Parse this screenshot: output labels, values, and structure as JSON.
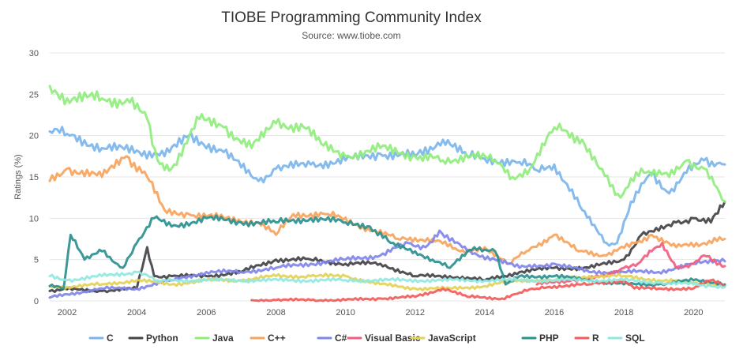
{
  "chart_data": {
    "type": "line",
    "title": "TIOBE Programming Community Index",
    "subtitle": "Source: www.tiobe.com",
    "ylabel": "Ratings (%)",
    "xlabel": "",
    "xlim": [
      2001.5,
      2020.9
    ],
    "ylim": [
      0,
      30
    ],
    "x_ticks": [
      "2002",
      "2004",
      "2006",
      "2008",
      "2010",
      "2012",
      "2014",
      "2016",
      "2018",
      "2020"
    ],
    "y_ticks": [
      "0",
      "5",
      "10",
      "15",
      "20",
      "25",
      "30"
    ],
    "grid": true,
    "legend_position": "bottom",
    "series": [
      {
        "name": "C",
        "color": "#7cb5ec",
        "x": [
          2001.5,
          2002,
          2003,
          2004,
          2004.8,
          2005.5,
          2006.5,
          2007.5,
          2008,
          2009,
          2010,
          2011,
          2012,
          2012.8,
          2013.5,
          2014,
          2015,
          2015.5,
          2016,
          2016.8,
          2017.5,
          2017.8,
          2018.2,
          2018.8,
          2019.3,
          2019.8,
          2020.3,
          2020.9
        ],
        "values": [
          20.5,
          20.2,
          18.5,
          18.2,
          17.5,
          20,
          18,
          14.5,
          16,
          16.5,
          17,
          17.8,
          17.5,
          19.5,
          17.5,
          17.2,
          16.8,
          15.8,
          16.5,
          11,
          7,
          7,
          12,
          15.5,
          13,
          15.5,
          17,
          16.5
        ]
      },
      {
        "name": "Python",
        "color": "#434348",
        "x": [
          2001.5,
          2002,
          2003,
          2004,
          2004.3,
          2004.5,
          2005,
          2006,
          2007,
          2008,
          2009,
          2010,
          2011,
          2012,
          2013,
          2014,
          2015,
          2016,
          2017,
          2018,
          2018.5,
          2019,
          2019.5,
          2020,
          2020.5,
          2020.9
        ],
        "values": [
          1.2,
          1.4,
          1.2,
          1.5,
          6.5,
          3,
          3,
          3,
          3.5,
          5,
          5,
          4.5,
          4.5,
          3,
          3,
          2.5,
          3.5,
          4,
          4,
          5,
          8,
          8.5,
          9.5,
          10,
          9.5,
          12
        ]
      },
      {
        "name": "Java",
        "color": "#90ed7d",
        "x": [
          2001.5,
          2002,
          2003,
          2003.8,
          2004.3,
          2004.6,
          2005,
          2005.8,
          2006.5,
          2007.3,
          2008,
          2008.8,
          2009.3,
          2010,
          2011,
          2012,
          2012.8,
          2013.6,
          2014.3,
          2014.8,
          2015.3,
          2016,
          2016.8,
          2017.3,
          2017.9,
          2018.5,
          2019.3,
          2019.8,
          2020.3,
          2020.9
        ],
        "values": [
          26,
          24.5,
          24.5,
          24,
          22,
          17,
          16,
          22,
          21,
          18.5,
          21.5,
          21,
          19,
          17.5,
          18.5,
          17.5,
          17,
          17.5,
          17,
          15,
          16,
          21,
          19.5,
          16,
          12.5,
          16,
          15,
          17,
          16,
          12
        ]
      },
      {
        "name": "C++",
        "color": "#f7a35c",
        "x": [
          2001.5,
          2002,
          2003,
          2003.7,
          2004.3,
          2004.8,
          2005.5,
          2006.5,
          2007.5,
          2008,
          2008.5,
          2009.5,
          2010.5,
          2011.5,
          2012.5,
          2013.3,
          2014,
          2014.7,
          2015.2,
          2016,
          2016.7,
          2017.5,
          2018.3,
          2018.8,
          2019.5,
          2020.3,
          2020.9
        ],
        "values": [
          14.5,
          16,
          15,
          17.5,
          15,
          11,
          10.5,
          10,
          9.5,
          8,
          10.5,
          10.5,
          9,
          7.5,
          7.5,
          6,
          6.5,
          4.5,
          6,
          8,
          6,
          5.5,
          7,
          8,
          6.5,
          7,
          7.5
        ]
      },
      {
        "name": "C#",
        "color": "#8085e9",
        "x": [
          2001.5,
          2002,
          2003,
          2004,
          2005,
          2006,
          2007,
          2008,
          2009,
          2010,
          2011,
          2011.8,
          2012.3,
          2012.7,
          2013.5,
          2014.3,
          2015,
          2016,
          2017,
          2018,
          2019,
          2020,
          2020.9
        ],
        "values": [
          0.4,
          0.8,
          1.5,
          1.5,
          2.5,
          3.5,
          3.5,
          4,
          4.5,
          5,
          5.5,
          7,
          6.5,
          8.5,
          6,
          5,
          4,
          4.5,
          3.5,
          3.5,
          3.5,
          4.5,
          4.8
        ]
      },
      {
        "name": "Visual Basic",
        "color": "#f15c80",
        "x": [
          2015.5,
          2016.5,
          2017.5,
          2018,
          2018.4,
          2018.8,
          2019.1,
          2019.5,
          2020,
          2020.3,
          2020.9
        ],
        "values": [
          2,
          2.5,
          3,
          4,
          4.5,
          6,
          7,
          4,
          4.5,
          5.5,
          4.2
        ]
      },
      {
        "name": "JavaScript",
        "color": "#e4d354",
        "x": [
          2001.5,
          2002,
          2003,
          2004,
          2005,
          2006,
          2007,
          2008,
          2009,
          2010,
          2011,
          2012,
          2013,
          2014,
          2015,
          2016,
          2017,
          2018,
          2019,
          2020,
          2020.9
        ],
        "values": [
          1.8,
          1.7,
          2,
          2.5,
          2,
          2.5,
          2.5,
          3,
          3,
          3,
          2,
          1.5,
          1.5,
          1.8,
          2.5,
          2.5,
          3,
          3,
          2.5,
          2.2,
          2
        ]
      },
      {
        "name": "PHP",
        "color": "#2b908f",
        "x": [
          2001.5,
          2001.9,
          2002.1,
          2002.5,
          2003,
          2003.6,
          2004,
          2004.5,
          2005,
          2006,
          2007,
          2008,
          2009,
          2010,
          2010.7,
          2011.3,
          2012,
          2012.5,
          2013,
          2013.7,
          2014.3,
          2014.6,
          2015,
          2016,
          2017,
          2018,
          2019,
          2020,
          2020.9
        ],
        "values": [
          1.8,
          1.5,
          8,
          5,
          6,
          4,
          7,
          10,
          9,
          10,
          9.5,
          9.5,
          10,
          9.5,
          9,
          7,
          6,
          5,
          4,
          6.5,
          6,
          2,
          3,
          3,
          2.5,
          2,
          2,
          2.5,
          2
        ]
      },
      {
        "name": "R",
        "color": "#f45b5b",
        "x": [
          2007.3,
          2008,
          2009,
          2010,
          2011,
          2012,
          2012.8,
          2013.5,
          2014.5,
          2015,
          2015.5,
          2016,
          2017,
          2018,
          2018.3,
          2019,
          2020,
          2020.5,
          2020.9
        ],
        "values": [
          0.1,
          0.1,
          0.1,
          0.1,
          0.3,
          0.5,
          1.5,
          0.5,
          0.3,
          1,
          1.5,
          1.8,
          2,
          2.5,
          1.5,
          1.5,
          1.5,
          2.5,
          1.8
        ]
      },
      {
        "name": "SQL",
        "color": "#91e8e1",
        "x": [
          2001.5,
          2002,
          2003,
          2004,
          2004.6,
          2005,
          2010,
          2015,
          2018,
          2019,
          2020,
          2020.5,
          2020.9
        ],
        "values": [
          3,
          2.5,
          3,
          3.5,
          2.5,
          2.5,
          2.5,
          2.5,
          2.5,
          2.2,
          2,
          1.8,
          1.7
        ]
      }
    ]
  }
}
